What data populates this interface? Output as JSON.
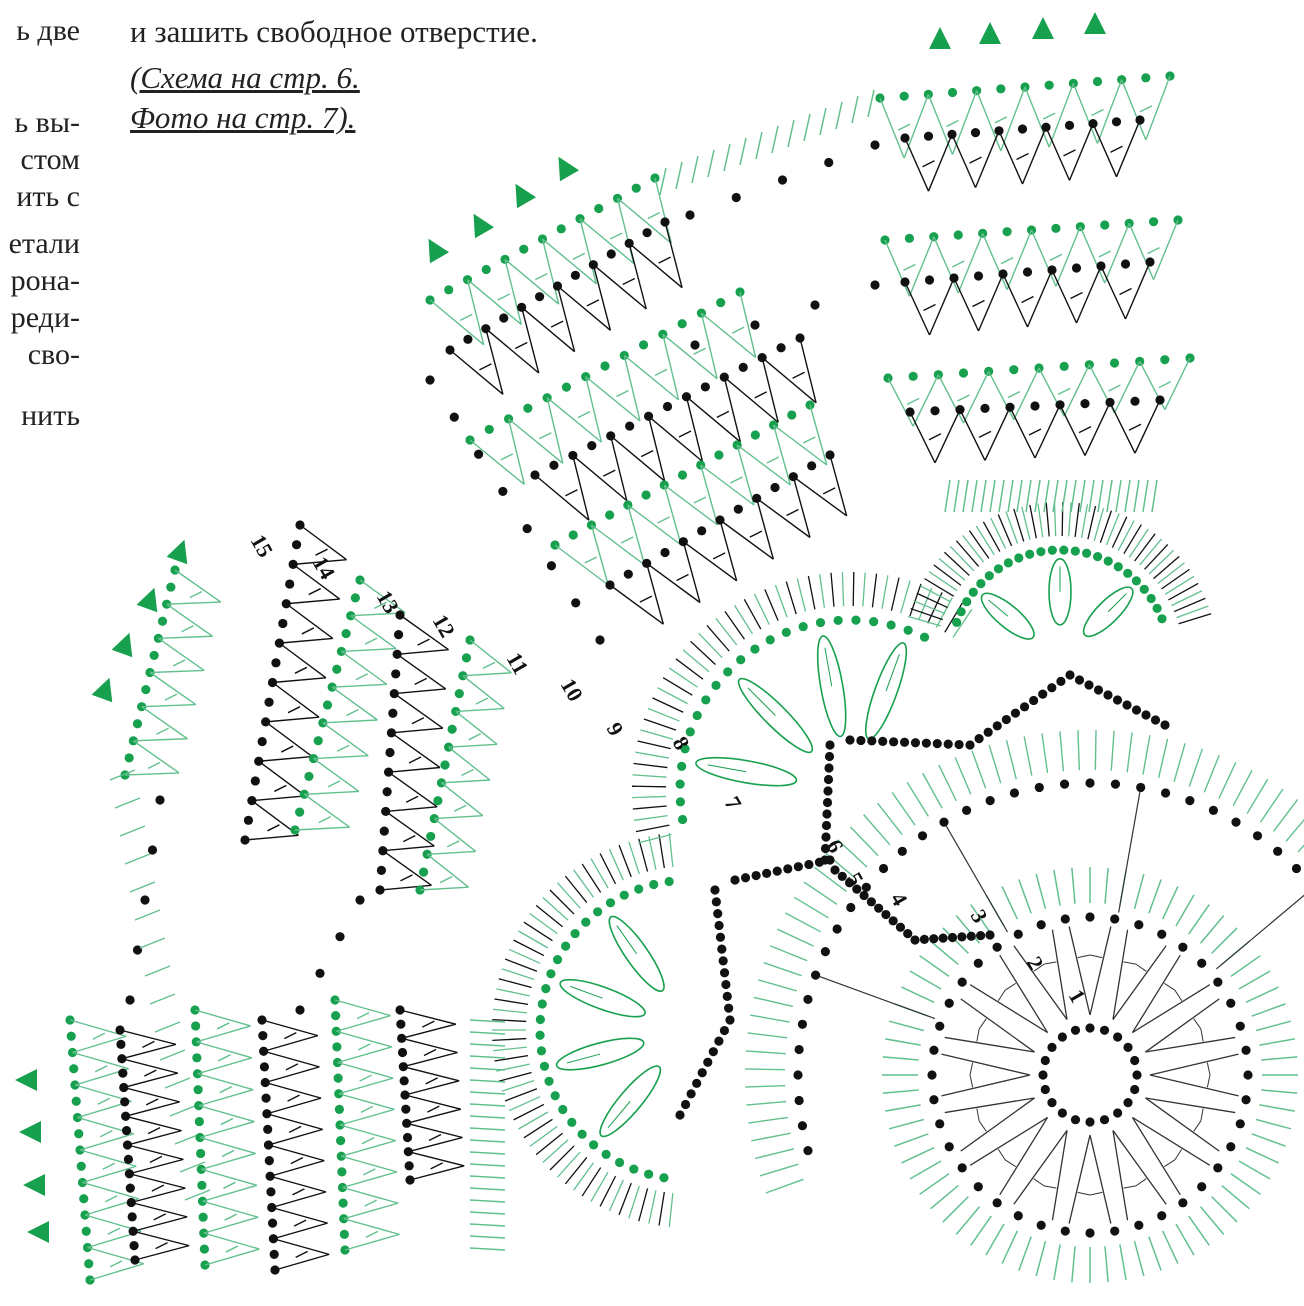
{
  "left_column": {
    "lines": [
      "ь две",
      "ь вы-",
      "стом",
      "ить с",
      "етали",
      "рона-",
      "реди-",
      "сво-",
      "нить"
    ]
  },
  "top_text": {
    "line": "и зашить свободное отверстие.",
    "scheme_ref": "(Схема на стр. 6.",
    "photo_ref": "Фото на стр. 7)."
  },
  "diagram": {
    "row_numbers": [
      "15",
      "14",
      "13",
      "12",
      "11",
      "10",
      "9",
      "8",
      "7",
      "6",
      "5",
      "4",
      "3",
      "2",
      "1"
    ]
  }
}
